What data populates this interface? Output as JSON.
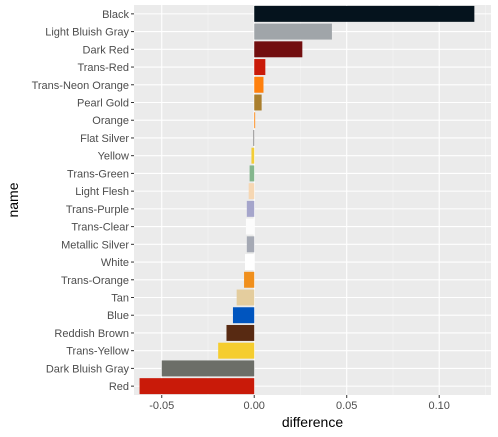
{
  "chart_data": {
    "type": "bar",
    "orientation": "horizontal",
    "xlabel": "difference",
    "ylabel": "name",
    "xlim": [
      -0.065,
      0.128
    ],
    "x_ticks": [
      -0.05,
      0.0,
      0.05,
      0.1
    ],
    "x_tick_labels": [
      "-0.05",
      "0.00",
      "0.05",
      "0.10"
    ],
    "grid": true,
    "legend": "none",
    "bars": [
      {
        "name": "Black",
        "value": 0.119,
        "color": "#05131D"
      },
      {
        "name": "Light Bluish Gray",
        "value": 0.042,
        "color": "#A0A5A9"
      },
      {
        "name": "Dark Red",
        "value": 0.026,
        "color": "#720E0F"
      },
      {
        "name": "Trans-Red",
        "value": 0.006,
        "color": "#C91A09"
      },
      {
        "name": "Trans-Neon Orange",
        "value": 0.005,
        "color": "#FF800D"
      },
      {
        "name": "Pearl Gold",
        "value": 0.004,
        "color": "#AA7F2E"
      },
      {
        "name": "Orange",
        "value": 0.0005,
        "color": "#FE8A18"
      },
      {
        "name": "Flat Silver",
        "value": -0.0005,
        "color": "#898788"
      },
      {
        "name": "Yellow",
        "value": -0.0015,
        "color": "#F2CD37"
      },
      {
        "name": "Trans-Green",
        "value": -0.0025,
        "color": "#84B68D"
      },
      {
        "name": "Light Flesh",
        "value": -0.003,
        "color": "#F6D7B3"
      },
      {
        "name": "Trans-Purple",
        "value": -0.004,
        "color": "#A5A5CB"
      },
      {
        "name": "Trans-Clear",
        "value": -0.0045,
        "color": "#FCFCFC"
      },
      {
        "name": "Metallic Silver",
        "value": -0.004,
        "color": "#A5A9B4"
      },
      {
        "name": "White",
        "value": -0.005,
        "color": "#FFFFFF"
      },
      {
        "name": "Trans-Orange",
        "value": -0.0055,
        "color": "#F08F1C"
      },
      {
        "name": "Tan",
        "value": -0.0095,
        "color": "#E4CD9E"
      },
      {
        "name": "Blue",
        "value": -0.0115,
        "color": "#0055BF"
      },
      {
        "name": "Reddish Brown",
        "value": -0.015,
        "color": "#582A12"
      },
      {
        "name": "Trans-Yellow",
        "value": -0.0195,
        "color": "#F5CD2F"
      },
      {
        "name": "Dark Bluish Gray",
        "value": -0.05,
        "color": "#6C6E68"
      },
      {
        "name": "Red",
        "value": -0.062,
        "color": "#C91A09"
      }
    ]
  }
}
